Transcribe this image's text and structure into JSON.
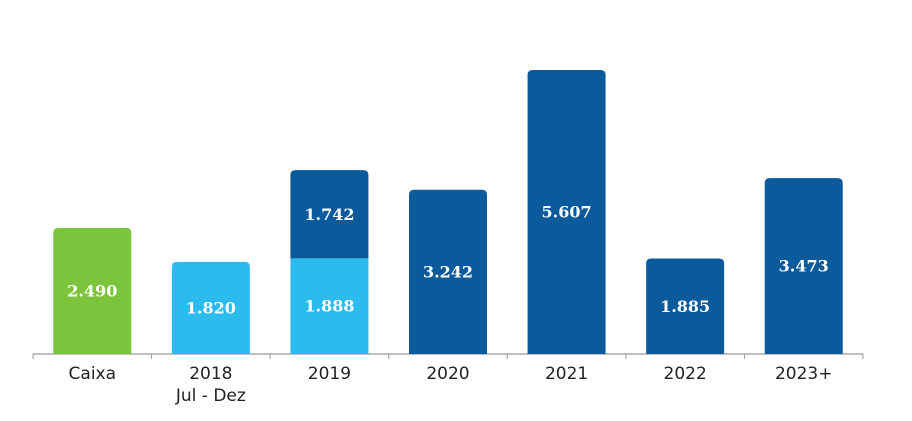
{
  "chart_data": {
    "type": "stacked-bar",
    "categories": [
      "Caixa",
      [
        "2018",
        "Jul - Dez"
      ],
      "2019",
      "2020",
      "2021",
      "2022",
      "2023+"
    ],
    "series": [
      {
        "color": "#7cc43c",
        "values": [
          2490,
          null,
          null,
          null,
          null,
          null,
          null
        ],
        "value_labels": [
          "2.490",
          null,
          null,
          null,
          null,
          null,
          null
        ]
      },
      {
        "color": "#2bbbef",
        "values": [
          null,
          1820,
          1888,
          null,
          null,
          null,
          null
        ],
        "value_labels": [
          null,
          "1.820",
          "1.888",
          null,
          null,
          null,
          null
        ]
      },
      {
        "color": "#0b5a9c",
        "values": [
          null,
          null,
          1742,
          3242,
          5607,
          1885,
          3473
        ],
        "value_labels": [
          null,
          null,
          "1.742",
          "3.242",
          "5.607",
          "1.885",
          "3.473"
        ]
      }
    ]
  }
}
